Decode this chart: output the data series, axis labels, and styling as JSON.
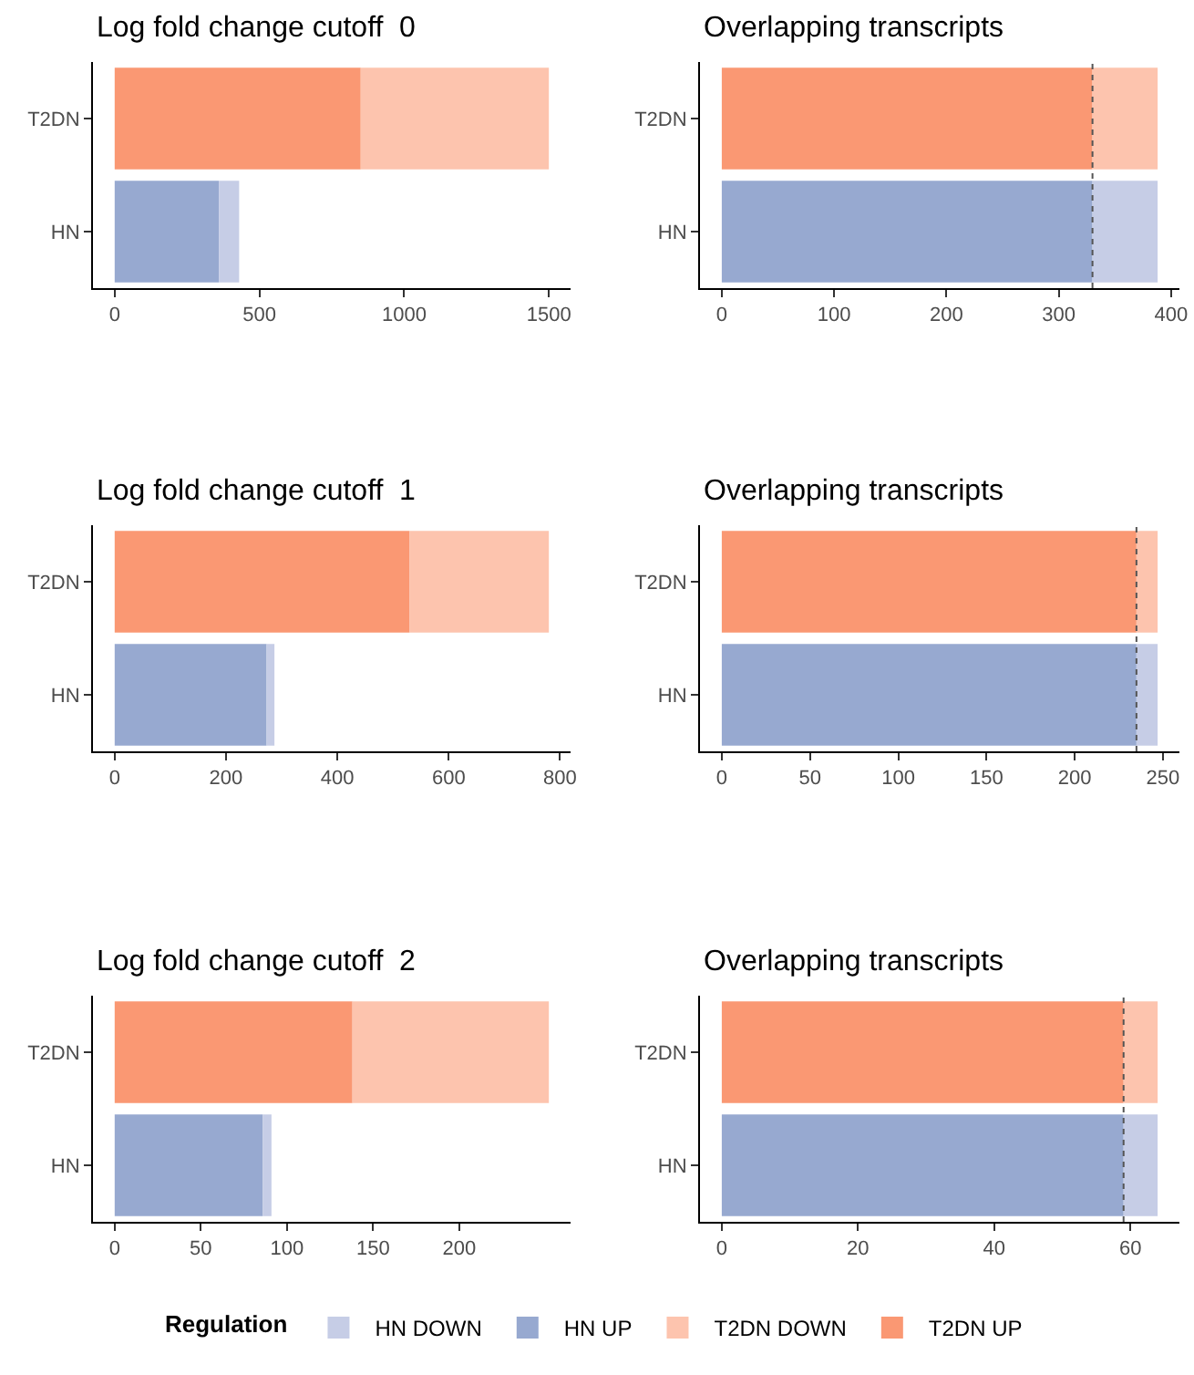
{
  "chart_data": [
    {
      "type": "bar",
      "orientation": "horizontal",
      "stacked": true,
      "title": "Log fold change cutoff  0",
      "categories": [
        "T2DN",
        "HN"
      ],
      "xlim": [
        -75,
        1575
      ],
      "xticks": [
        0,
        500,
        1000,
        1500
      ],
      "legend": "bottom",
      "legend_title": "Regulation",
      "grid": false,
      "series": [
        {
          "name": "HN UP",
          "color": "#97a9d0",
          "values": [
            null,
            360
          ]
        },
        {
          "name": "HN DOWN",
          "color": "#c6cde6",
          "values": [
            null,
            70
          ]
        },
        {
          "name": "T2DN UP",
          "color": "#fa9873",
          "values": [
            850,
            null
          ]
        },
        {
          "name": "T2DN DOWN",
          "color": "#fdc4ae",
          "values": [
            650,
            null
          ]
        }
      ]
    },
    {
      "type": "bar",
      "orientation": "horizontal",
      "stacked": true,
      "title": "Overlapping transcripts",
      "categories": [
        "T2DN",
        "HN"
      ],
      "xlim": [
        -19.4,
        407.4
      ],
      "xticks": [
        0,
        100,
        200,
        300,
        400
      ],
      "grid": false,
      "ref_lines": [
        {
          "axis": "x",
          "value": 330,
          "color": "#555555",
          "line_style": "dotted"
        }
      ],
      "series": [
        {
          "color": "#97a9d0",
          "values": [
            null,
            330
          ]
        },
        {
          "color": "#c6cde6",
          "values": [
            null,
            58
          ]
        },
        {
          "color": "#fa9873",
          "values": [
            330,
            null
          ]
        },
        {
          "color": "#fdc4ae",
          "values": [
            58,
            null
          ]
        }
      ]
    },
    {
      "type": "bar",
      "orientation": "horizontal",
      "stacked": true,
      "title": "Log fold change cutoff  1",
      "categories": [
        "T2DN",
        "HN"
      ],
      "xlim": [
        -39,
        819
      ],
      "xticks": [
        0,
        200,
        400,
        600,
        800
      ],
      "grid": false,
      "series": [
        {
          "color": "#97a9d0",
          "values": [
            null,
            273
          ]
        },
        {
          "color": "#c6cde6",
          "values": [
            null,
            14
          ]
        },
        {
          "color": "#fa9873",
          "values": [
            530,
            null
          ]
        },
        {
          "color": "#fdc4ae",
          "values": [
            250,
            null
          ]
        }
      ]
    },
    {
      "type": "bar",
      "orientation": "horizontal",
      "stacked": true,
      "title": "Overlapping transcripts",
      "categories": [
        "T2DN",
        "HN"
      ],
      "xlim": [
        -12.35,
        259.35
      ],
      "xticks": [
        0,
        50,
        100,
        150,
        200,
        250
      ],
      "grid": false,
      "ref_lines": [
        {
          "axis": "x",
          "value": 235,
          "color": "#555555",
          "line_style": "dotted"
        }
      ],
      "series": [
        {
          "color": "#97a9d0",
          "values": [
            null,
            235
          ]
        },
        {
          "color": "#c6cde6",
          "values": [
            null,
            12
          ]
        },
        {
          "color": "#fa9873",
          "values": [
            235,
            null
          ]
        },
        {
          "color": "#fdc4ae",
          "values": [
            12,
            null
          ]
        }
      ]
    },
    {
      "type": "bar",
      "orientation": "horizontal",
      "stacked": true,
      "title": "Log fold change cutoff  2",
      "categories": [
        "T2DN",
        "HN"
      ],
      "xlim": [
        -12.6,
        264.6
      ],
      "xticks": [
        0,
        50,
        100,
        150,
        200
      ],
      "grid": false,
      "series": [
        {
          "color": "#97a9d0",
          "values": [
            null,
            86
          ]
        },
        {
          "color": "#c6cde6",
          "values": [
            null,
            5
          ]
        },
        {
          "color": "#fa9873",
          "values": [
            138,
            null
          ]
        },
        {
          "color": "#fdc4ae",
          "values": [
            114,
            null
          ]
        }
      ]
    },
    {
      "type": "bar",
      "orientation": "horizontal",
      "stacked": true,
      "title": "Overlapping transcripts",
      "categories": [
        "T2DN",
        "HN"
      ],
      "xlim": [
        -3.2,
        67.2
      ],
      "xticks": [
        0,
        20,
        40,
        60
      ],
      "grid": false,
      "ref_lines": [
        {
          "axis": "x",
          "value": 59,
          "color": "#555555",
          "line_style": "dotted"
        }
      ],
      "series": [
        {
          "color": "#97a9d0",
          "values": [
            null,
            59
          ]
        },
        {
          "color": "#c6cde6",
          "values": [
            null,
            5
          ]
        },
        {
          "color": "#fa9873",
          "values": [
            59,
            null
          ]
        },
        {
          "color": "#fdc4ae",
          "values": [
            5,
            null
          ]
        }
      ]
    }
  ]
}
